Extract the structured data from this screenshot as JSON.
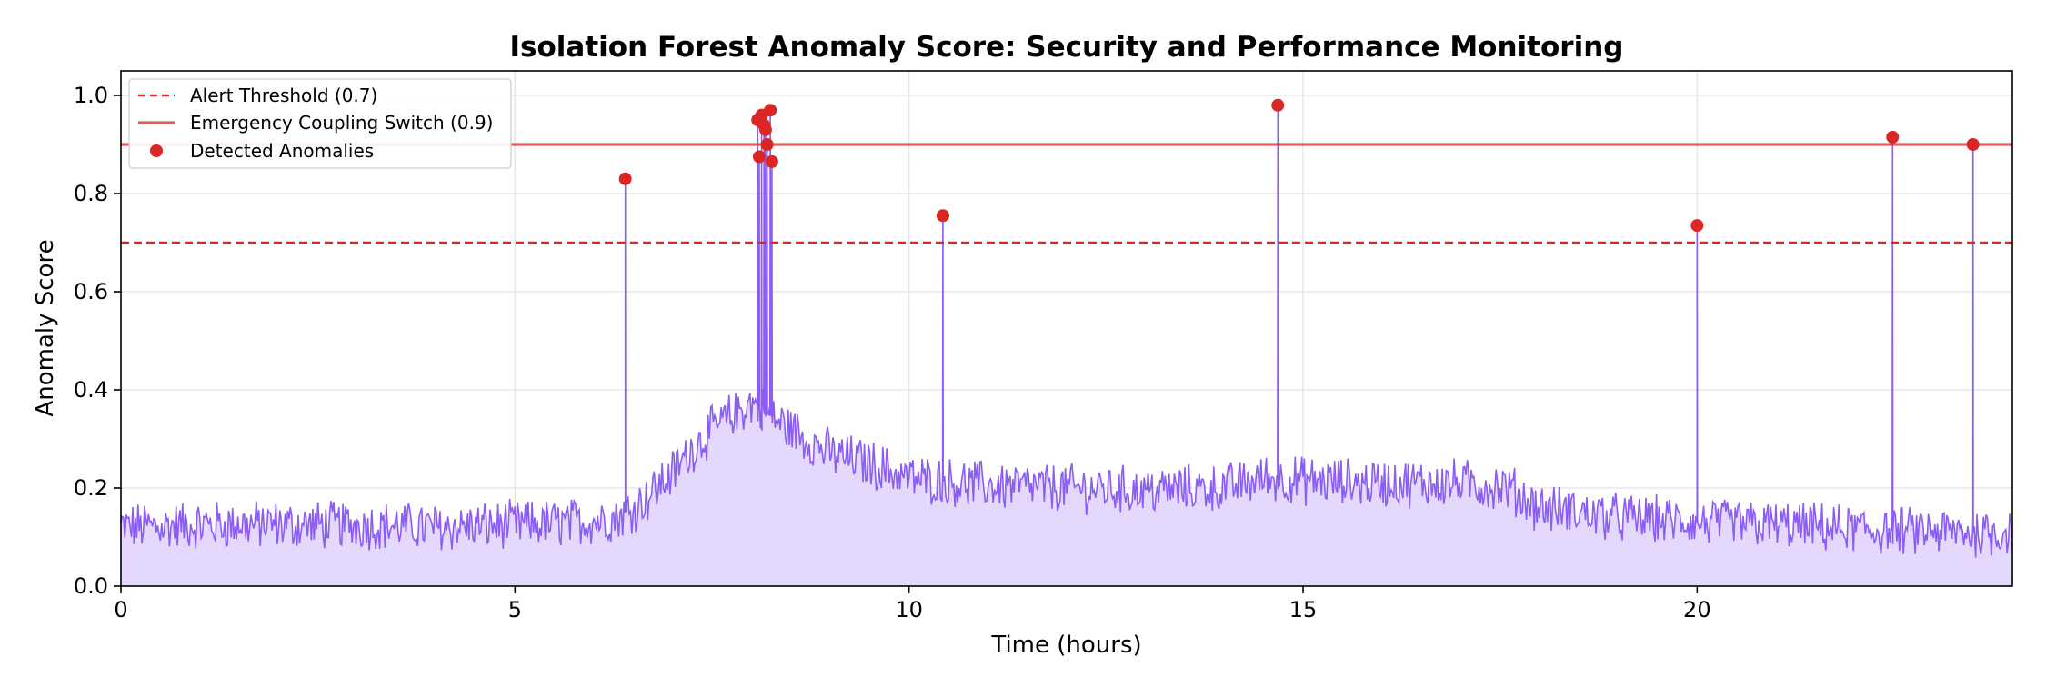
{
  "chart_data": {
    "type": "line",
    "title": "Isolation Forest Anomaly Score: Security and Performance Monitoring",
    "xlabel": "Time (hours)",
    "ylabel": "Anomaly Score",
    "xlim": [
      0,
      24
    ],
    "ylim": [
      0,
      1.05
    ],
    "x_ticks": [
      "0",
      "5",
      "10",
      "15",
      "20"
    ],
    "y_ticks": [
      "0.0",
      "0.2",
      "0.4",
      "0.6",
      "0.8",
      "1.0"
    ],
    "grid": true,
    "legend_position": "top-left",
    "legend": {
      "alert": "Alert Threshold (0.7)",
      "emergency": "Emergency Coupling Switch (0.9)",
      "anomalies": "Detected Anomalies"
    },
    "thresholds": {
      "alert": 0.7,
      "emergency": 0.9
    },
    "colors": {
      "line": "#8b5cf6",
      "fill": "#e4d8fc",
      "threshold": "#dc2626",
      "anomaly": "#dc2626",
      "grid": "#e2e2e2"
    },
    "baseline": {
      "x": [
        0,
        1,
        2,
        3,
        4,
        5,
        5.8,
        6.3,
        6.6,
        7.0,
        7.3,
        7.6,
        7.8,
        7.95,
        8.05,
        8.3,
        8.6,
        9.0,
        9.5,
        10,
        11,
        12,
        13,
        14,
        14.5,
        15,
        16,
        17,
        17.6,
        18,
        19,
        20,
        21,
        22,
        23,
        24
      ],
      "y": [
        0.12,
        0.125,
        0.125,
        0.125,
        0.12,
        0.125,
        0.13,
        0.14,
        0.17,
        0.23,
        0.29,
        0.33,
        0.35,
        0.37,
        0.37,
        0.34,
        0.31,
        0.27,
        0.25,
        0.22,
        0.205,
        0.2,
        0.195,
        0.2,
        0.22,
        0.215,
        0.21,
        0.21,
        0.2,
        0.16,
        0.14,
        0.13,
        0.125,
        0.115,
        0.11,
        0.11
      ]
    },
    "noise": 0.045,
    "anomalies": {
      "x": [
        6.4,
        8.08,
        8.1,
        8.13,
        8.16,
        8.18,
        8.2,
        8.24,
        8.26,
        10.43,
        14.68,
        20.0,
        22.48,
        23.5
      ],
      "y": [
        0.83,
        0.95,
        0.875,
        0.96,
        0.94,
        0.93,
        0.9,
        0.97,
        0.865,
        0.755,
        0.98,
        0.735,
        0.915,
        0.9
      ]
    }
  }
}
